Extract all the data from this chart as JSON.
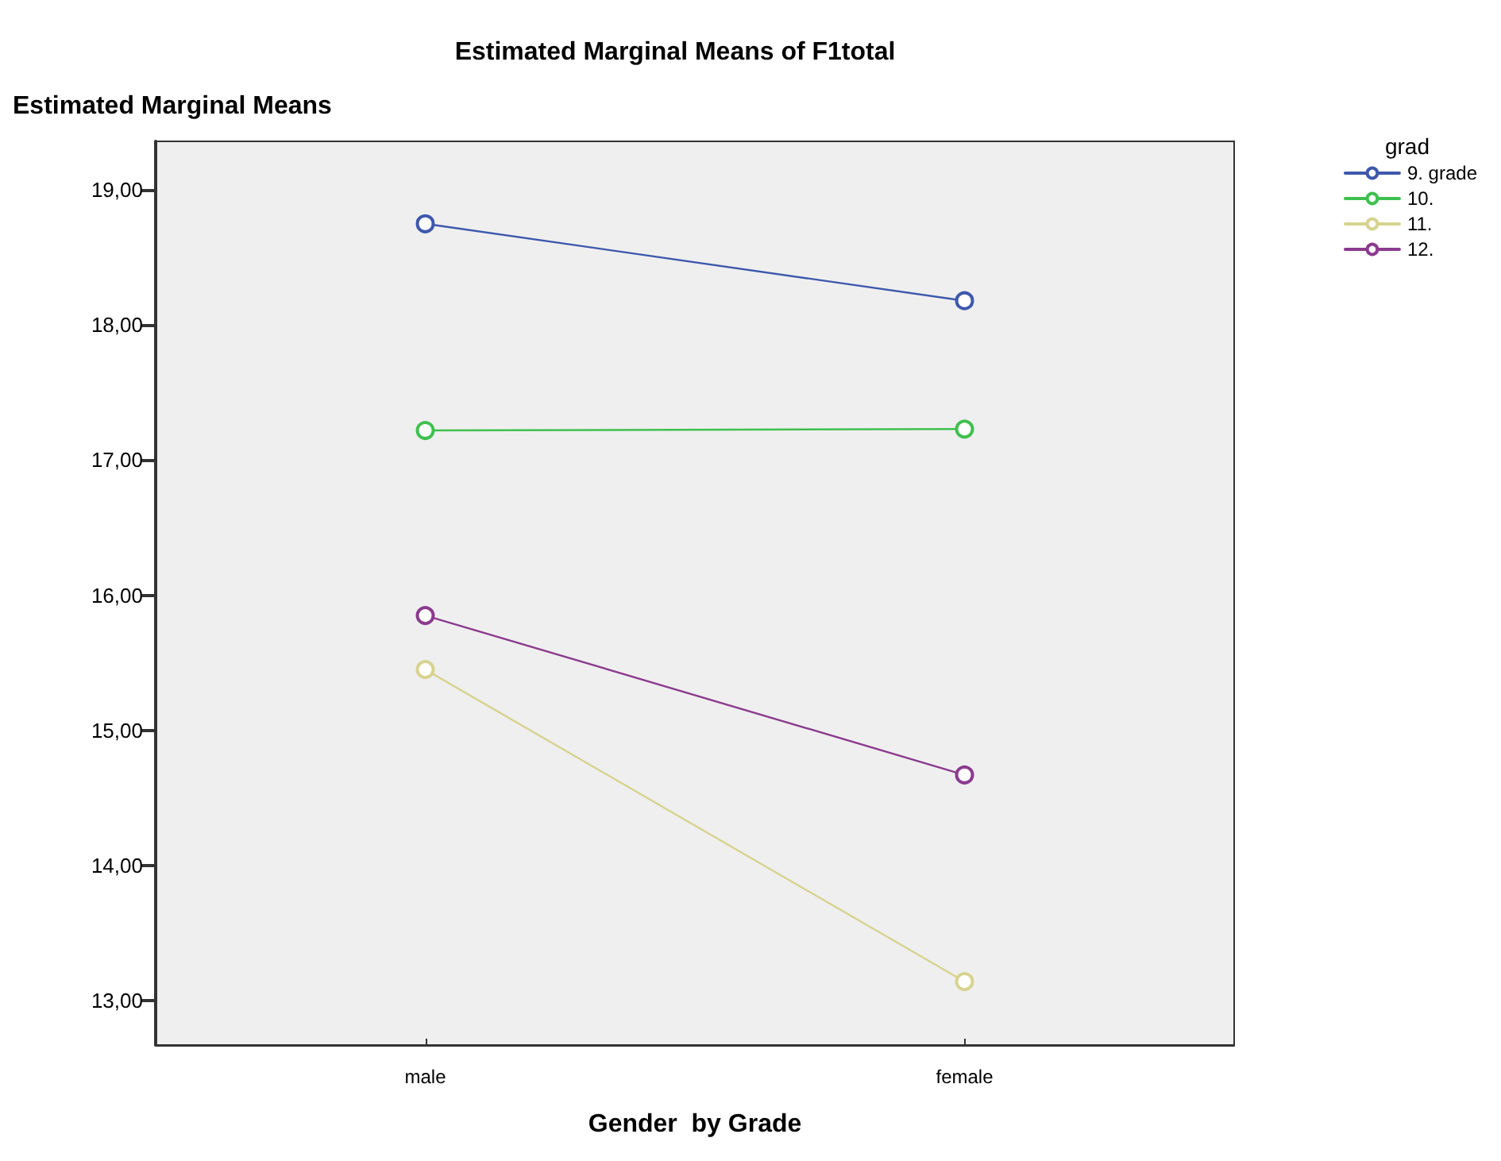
{
  "chart_data": {
    "type": "line",
    "title": "Estimated Marginal Means of F1total",
    "xlabel": "Gender  by Grade",
    "ylabel": "Estimated Marginal Means",
    "legend_title": "grad",
    "categories": [
      "male",
      "female"
    ],
    "series": [
      {
        "name": "9. grade",
        "color": "#3e58ac",
        "values": [
          18.75,
          18.18
        ]
      },
      {
        "name": "10.",
        "color": "#3ec04e",
        "values": [
          17.22,
          17.23
        ]
      },
      {
        "name": "11.",
        "color": "#d7d38f",
        "values": [
          15.45,
          13.14
        ]
      },
      {
        "name": "12.",
        "color": "#8b3a8e",
        "values": [
          15.85,
          14.67
        ]
      }
    ],
    "ylim": [
      12.67,
      19.36
    ],
    "yticks": [
      {
        "value": 13,
        "label": "13,00"
      },
      {
        "value": 14,
        "label": "14,00"
      },
      {
        "value": 15,
        "label": "15,00"
      },
      {
        "value": 16,
        "label": "16,00"
      },
      {
        "value": 17,
        "label": "17,00"
      },
      {
        "value": 18,
        "label": "18,00"
      },
      {
        "value": 19,
        "label": "19,00"
      }
    ],
    "grid": false,
    "legend": "top right",
    "marker": "circle",
    "line_style": "solid"
  }
}
